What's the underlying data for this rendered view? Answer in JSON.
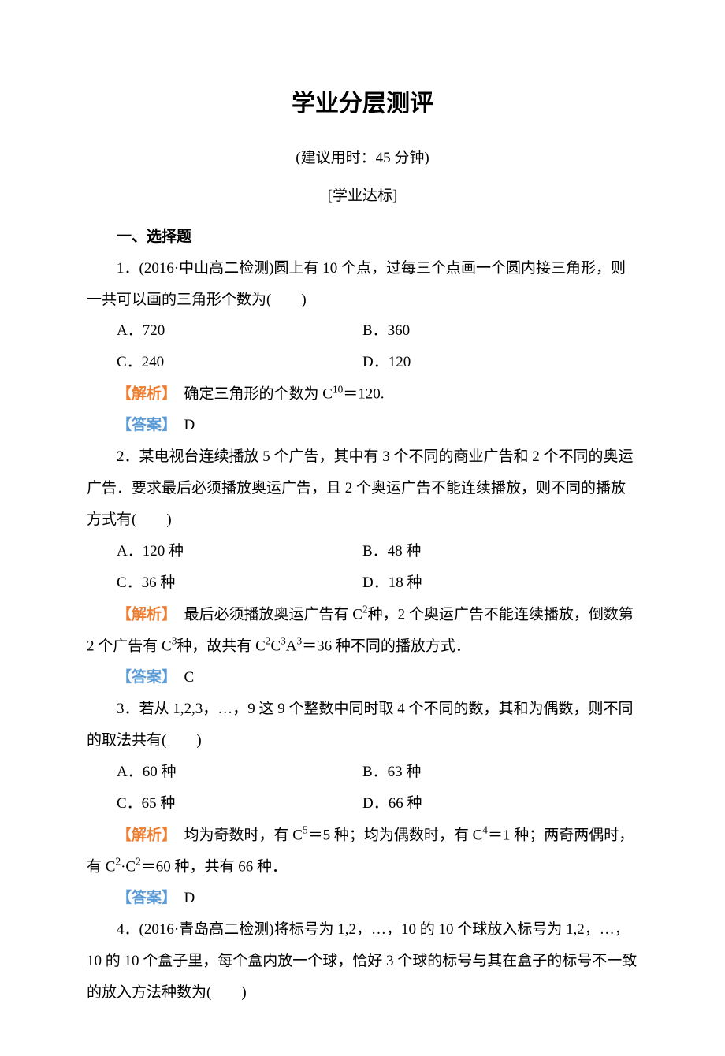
{
  "colors": {
    "analysis_label": "#ed7d31",
    "answer_label": "#5b9bd5",
    "text": "#000000",
    "background": "#ffffff"
  },
  "fonts": {
    "title_family": "SimHei",
    "body_family": "SimSun",
    "analysis_family": "KaiTi",
    "title_size_pt": 22,
    "body_size_pt": 14
  },
  "title": "学业分层测评",
  "subtitle": "(建议用时：45 分钟)",
  "section_label": "[学业达标]",
  "section_header": "一、选择题",
  "q1": {
    "stem": "1．(2016·中山高二检测)圆上有 10 个点，过每三个点画一个圆内接三角形，则一共可以画的三角形个数为(　　)",
    "opt_a": "A．720",
    "opt_b": "B．360",
    "opt_c": "C．240",
    "opt_d": "D．120",
    "analysis_label": "【解析】",
    "analysis_text": "　确定三角形的个数为 C",
    "analysis_sup": "10",
    "analysis_tail": "＝120.",
    "answer_label": "【答案】",
    "answer": "　D"
  },
  "q2": {
    "stem": "2．某电视台连续播放 5 个广告，其中有 3 个不同的商业广告和 2 个不同的奥运广告．要求最后必须播放奥运广告，且 2 个奥运广告不能连续播放，则不同的播放方式有(　　)",
    "opt_a": "A．120 种",
    "opt_b": "B．48 种",
    "opt_c": "C．36 种",
    "opt_d": "D．18 种",
    "analysis_label": "【解析】",
    "analysis_text_1": "　最后必须播放奥运广告有 C",
    "analysis_sup_1": "2",
    "analysis_text_2": "种，2 个奥运广告不能连续播放，倒数第 2 个广告有 C",
    "analysis_sup_2": "3",
    "analysis_text_3": "种，故共有 C",
    "analysis_sup_3a": "2",
    "analysis_text_3b": "C",
    "analysis_sup_3b": "3",
    "analysis_text_3c": "A",
    "analysis_sup_3c": "3",
    "analysis_text_4": "＝36 种不同的播放方式．",
    "answer_label": "【答案】",
    "answer": "　C"
  },
  "q3": {
    "stem": "3．若从 1,2,3，…，9 这 9 个整数中同时取 4 个不同的数，其和为偶数，则不同的取法共有(　　)",
    "opt_a": "A．60 种",
    "opt_b": "B．63 种",
    "opt_c": "C．65 种",
    "opt_d": "D．66 种",
    "analysis_label": "【解析】",
    "analysis_text_1": "　均为奇数时，有 C",
    "analysis_sup_1": "5",
    "analysis_text_2": "＝5 种；均为偶数时，有 C",
    "analysis_sup_2": "4",
    "analysis_text_3": "＝1 种；两奇两偶时，有 C",
    "analysis_sup_3a": "2",
    "analysis_text_3b": "·C",
    "analysis_sup_3b": "2",
    "analysis_text_4": "＝60 种，共有 66 种．",
    "answer_label": "【答案】",
    "answer": "　D"
  },
  "q4": {
    "stem": "4．(2016·青岛高二检测)将标号为 1,2，…，10 的 10 个球放入标号为 1,2，…，10 的 10 个盒子里，每个盒内放一个球，恰好 3 个球的标号与其在盒子的标号不一致的放入方法种数为(　　)"
  }
}
